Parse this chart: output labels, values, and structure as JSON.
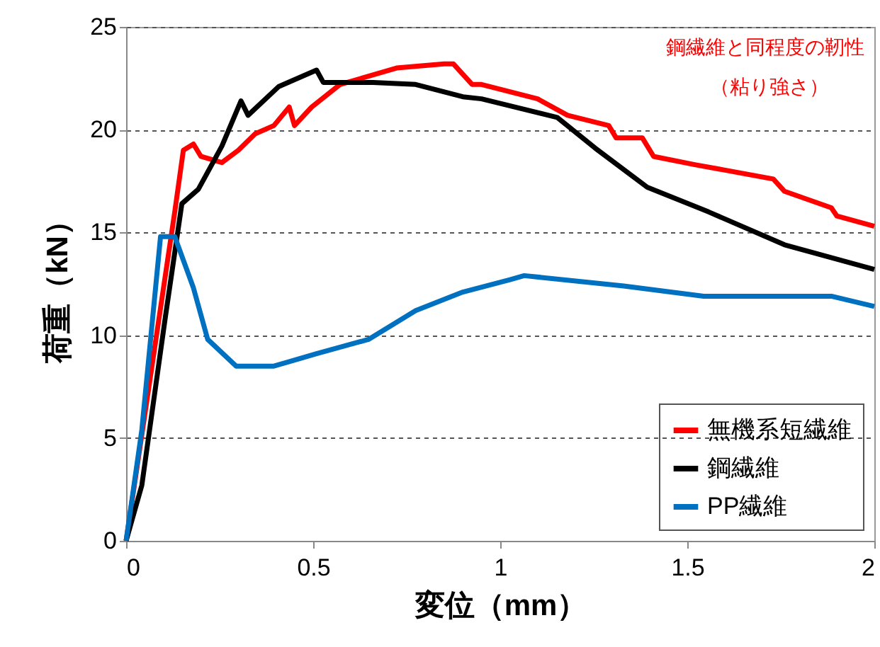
{
  "chart_data": {
    "type": "line",
    "xlabel": "変位（mm）",
    "ylabel": "荷重（kN）",
    "annotations": [
      "鋼繊維と同程度の靭性",
      "（粘り強さ）"
    ],
    "xlim": [
      0,
      2
    ],
    "xticks": [
      0,
      0.5,
      1,
      1.5,
      2
    ],
    "ylim": [
      0,
      25
    ],
    "yticks": [
      0,
      5,
      10,
      15,
      20,
      25
    ],
    "grid": "y",
    "legend": "bottom right",
    "line_style": "solid",
    "marker": "none",
    "series": [
      {
        "name": "無機系短繊維",
        "color": "#ff0000",
        "x": [
          0,
          0.13,
          0.153,
          0.18,
          0.2,
          0.256,
          0.3,
          0.345,
          0.395,
          0.436,
          0.45,
          0.496,
          0.572,
          0.723,
          0.85,
          0.875,
          0.925,
          0.95,
          1.1,
          1.18,
          1.29,
          1.31,
          1.38,
          1.41,
          1.52,
          1.73,
          1.76,
          1.885,
          1.9,
          2.0
        ],
        "values": [
          0,
          16.0,
          19.0,
          19.3,
          18.7,
          18.4,
          19.0,
          19.8,
          20.2,
          21.1,
          20.2,
          21.1,
          22.2,
          23.0,
          23.2,
          23.2,
          22.2,
          22.2,
          21.5,
          20.7,
          20.2,
          19.6,
          19.6,
          18.7,
          18.3,
          17.6,
          17.0,
          16.2,
          15.8,
          15.3
        ]
      },
      {
        "name": "鋼繊維",
        "color": "#000000",
        "x": [
          0,
          0.042,
          0.105,
          0.149,
          0.193,
          0.256,
          0.307,
          0.326,
          0.408,
          0.509,
          0.527,
          0.66,
          0.774,
          0.9,
          0.95,
          1.152,
          1.254,
          1.393,
          1.557,
          1.76,
          2.0
        ],
        "values": [
          0,
          2.7,
          10.9,
          16.4,
          17.1,
          19.2,
          21.4,
          20.7,
          22.1,
          22.9,
          22.3,
          22.3,
          22.2,
          21.6,
          21.5,
          20.6,
          19.1,
          17.2,
          16.0,
          14.4,
          13.2
        ]
      },
      {
        "name": "PP繊維",
        "color": "#0070c0",
        "x": [
          0,
          0.042,
          0.092,
          0.13,
          0.18,
          0.218,
          0.294,
          0.395,
          0.509,
          0.648,
          0.774,
          0.9,
          1.026,
          1.064,
          1.33,
          1.544,
          1.885,
          2.0
        ],
        "values": [
          0,
          5.4,
          14.8,
          14.8,
          12.3,
          9.8,
          8.5,
          8.5,
          9.1,
          9.8,
          11.2,
          12.1,
          12.7,
          12.9,
          12.4,
          11.9,
          11.9,
          11.4
        ]
      }
    ]
  }
}
